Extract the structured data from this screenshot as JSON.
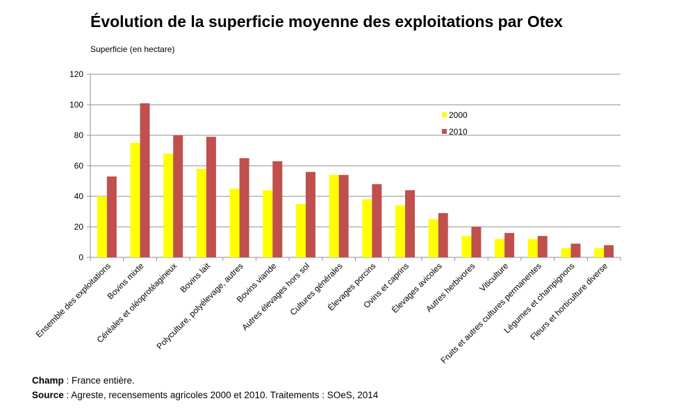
{
  "chart_data": {
    "type": "bar",
    "title": "Évolution de la superficie moyenne des exploitations par Otex",
    "ylabel": "Superficie (en hectare)",
    "xlabel": "",
    "ylim": [
      0,
      120
    ],
    "yticks": [
      0,
      20,
      40,
      60,
      80,
      100,
      120
    ],
    "grid": true,
    "legend_position": "top-right",
    "categories": [
      "Ensemble des exploitations",
      "Bovins mixte",
      "Céréales et oléoprotéagineux",
      "Bovins lait",
      "Polyculture, polyélevage, autres",
      "Bovins viande",
      "Autres élevages hors sol",
      "Cultures générales",
      "Élevages porcins",
      "Ovins et caprins",
      "Élevages avicoles",
      "Autres herbivores",
      "Viticulture",
      "Fruits et autres cultures permanentes",
      "Légumes et champignons",
      "Fleurs et horticulture diverse"
    ],
    "series": [
      {
        "name": "2000",
        "color": "#ffff00",
        "values": [
          40,
          75,
          68,
          58,
          45,
          44,
          35,
          54,
          38,
          34,
          25,
          14,
          12,
          12,
          6,
          6
        ]
      },
      {
        "name": "2010",
        "color": "#c0504d",
        "values": [
          53,
          101,
          80,
          79,
          65,
          63,
          56,
          54,
          48,
          44,
          29,
          20,
          16,
          14,
          9,
          8
        ]
      }
    ]
  },
  "notes": {
    "champ_label": "Champ",
    "champ_text": " : France entière.",
    "source_label": "Source",
    "source_text": " : Agreste, recensements agricoles 2000 et 2010. Traitements : SOeS, 2014"
  }
}
